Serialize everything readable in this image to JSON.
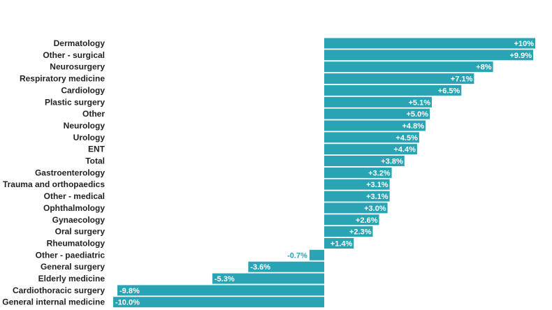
{
  "chart_data": {
    "type": "bar",
    "orientation": "horizontal",
    "bar_color": "#29a4b5",
    "categories": [
      "Dermatology",
      "Other - surgical",
      "Neurosurgery",
      "Respiratory medicine",
      "Cardiology",
      "Plastic surgery",
      "Other",
      "Neurology",
      "Urology",
      "ENT",
      "Total",
      "Gastroenterology",
      "Trauma and orthopaedics",
      "Other - medical",
      "Ophthalmology",
      "Gynaecology",
      "Oral surgery",
      "Rheumatology",
      "Other - paediatric",
      "General surgery",
      "Elderly medicine",
      "Cardiothoracic surgery",
      "General internal medicine"
    ],
    "values": [
      10,
      9.9,
      8,
      7.1,
      6.5,
      5.1,
      5.0,
      4.8,
      4.5,
      4.4,
      3.8,
      3.2,
      3.1,
      3.1,
      3.0,
      2.6,
      2.3,
      1.4,
      -0.7,
      -3.6,
      -5.3,
      -9.8,
      -10.0
    ],
    "data_labels": [
      "+10%",
      "+9.9%",
      "+8%",
      "+7.1%",
      "+6.5%",
      "+5.1%",
      "+5.0%",
      "+4.8%",
      "+4.5%",
      "+4.4%",
      "+3.8%",
      "+3.2%",
      "+3.1%",
      "+3.1%",
      "+3.0%",
      "+2.6%",
      "+2.3%",
      "+1.4%",
      "-0.7%",
      "-3.6%",
      "-5.3%",
      "-9.8%",
      "-10.0%"
    ],
    "xlim": [
      -10,
      10
    ],
    "grid": false,
    "title": "",
    "xlabel": "",
    "ylabel": ""
  }
}
